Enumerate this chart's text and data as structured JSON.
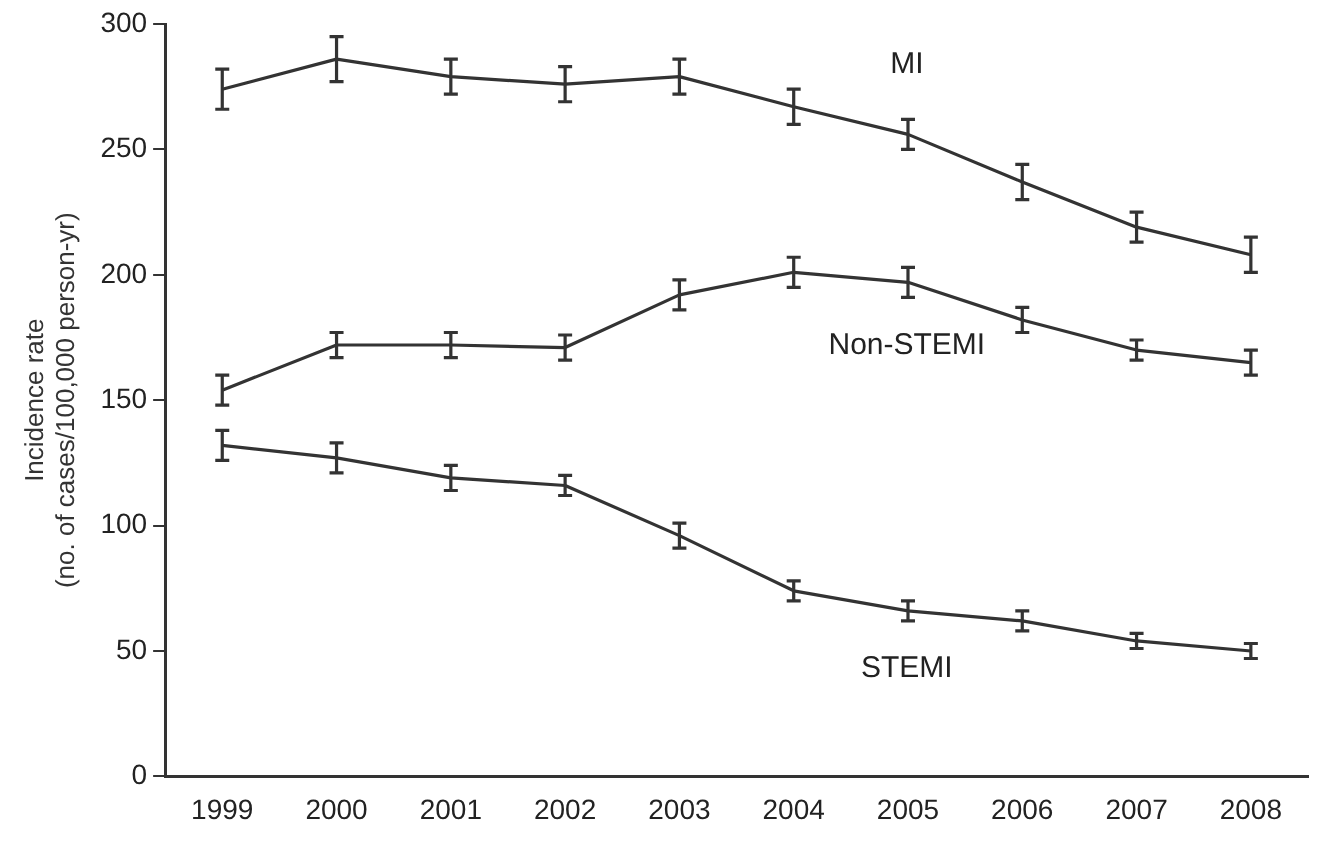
{
  "chart_data": {
    "type": "line",
    "ylabel": "Incidence rate\n(no. of cases/100,000 person-yr)",
    "categories": [
      "1999",
      "2000",
      "2001",
      "2002",
      "2003",
      "2004",
      "2005",
      "2006",
      "2007",
      "2008"
    ],
    "series": [
      {
        "name": "MI",
        "color": "#333333",
        "values": [
          274,
          286,
          279,
          276,
          279,
          267,
          256,
          237,
          219,
          208
        ],
        "errors": [
          8,
          9,
          7,
          7,
          7,
          7,
          6,
          7,
          6,
          7
        ]
      },
      {
        "name": "Non-STEMI",
        "color": "#333333",
        "values": [
          154,
          172,
          172,
          171,
          192,
          201,
          197,
          182,
          170,
          165
        ],
        "errors": [
          6,
          5,
          5,
          5,
          6,
          6,
          6,
          5,
          4,
          5
        ]
      },
      {
        "name": "STEMI",
        "color": "#333333",
        "values": [
          132,
          127,
          119,
          116,
          96,
          74,
          66,
          62,
          54,
          50
        ],
        "errors": [
          6,
          6,
          5,
          4,
          5,
          4,
          4,
          4,
          3,
          3
        ]
      }
    ],
    "ylim": [
      0,
      300
    ],
    "yticks": [
      0,
      50,
      100,
      150,
      200,
      250,
      300
    ],
    "grid": false,
    "legend": false,
    "line_style": "solid"
  }
}
